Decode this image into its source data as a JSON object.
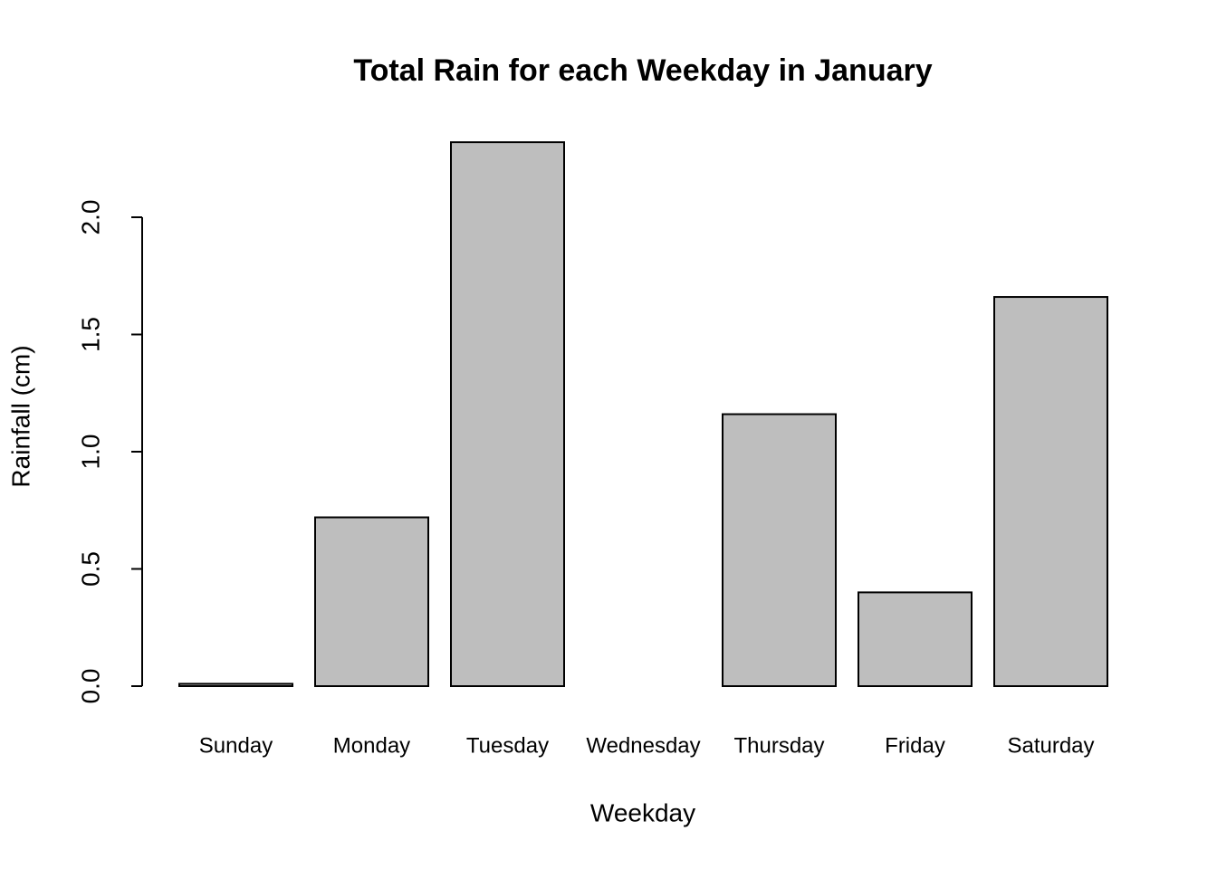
{
  "chart_data": {
    "type": "bar",
    "title": "Total Rain for each Weekday in January",
    "x_label": "Weekday",
    "y_label": "Rainfall (cm)",
    "categories": [
      "Sunday",
      "Monday",
      "Tuesday",
      "Wednesday",
      "Thursday",
      "Friday",
      "Saturday"
    ],
    "values": [
      0.01,
      0.72,
      2.32,
      0,
      1.16,
      0.4,
      1.66
    ],
    "color": "#bebebe",
    "ylim": [
      0,
      2.32
    ],
    "yticks": [
      {
        "value": 0,
        "label": "0.0"
      },
      {
        "value": 0.5,
        "label": "0.5"
      },
      {
        "value": 1,
        "label": "1.0"
      },
      {
        "value": 1.5,
        "label": "1.5"
      },
      {
        "value": 2,
        "label": "2.0"
      }
    ]
  }
}
